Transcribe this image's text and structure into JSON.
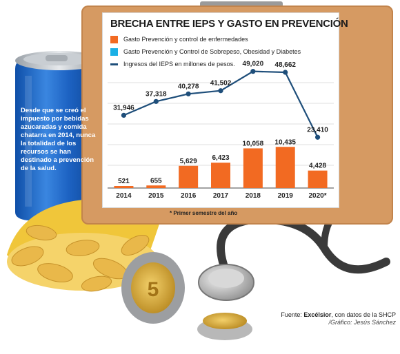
{
  "source": {
    "prefix": "Fuente: ",
    "outlet": "Excélsior",
    "suffix": ", con datos de la SHCP",
    "credit": "/Gráfico: Jesús Sánchez"
  },
  "side_text": "Desde que se creó el impuesto por bebidas azucaradas y comida chatarra en 2014, nunca la totalidad de los recursos se han destinado a prevención de la salud.",
  "colors": {
    "bars": "#f26a22",
    "secondary": "#1ab0e6",
    "line": "#1e4e7a"
  },
  "chart_data": {
    "type": "bar",
    "title": "BRECHA ENTRE IEPS Y GASTO EN PREVENCIÓN",
    "categories": [
      "2014",
      "2015",
      "2016",
      "2017",
      "2018",
      "2019",
      "2020*"
    ],
    "legend": [
      "Gasto Prevención y control de enfermedades",
      "Gasto Prevención y Control de Sobrepeso, Obesidad y Diabetes",
      "Ingresos del IEPS en millones de pesos."
    ],
    "series": [
      {
        "name": "Gasto Prevención y control de enfermedades",
        "type": "bar",
        "values": [
          521,
          655,
          5629,
          6423,
          10058,
          10435,
          4428
        ],
        "labels": [
          "521",
          "655",
          "5,629",
          "6,423",
          "10,058",
          "10,435",
          "4,428"
        ]
      },
      {
        "name": "Ingresos del IEPS en millones de pesos.",
        "type": "line",
        "values": [
          31946,
          37318,
          40278,
          41502,
          49020,
          48662,
          23410
        ],
        "labels": [
          "31,946",
          "37,318",
          "40,278",
          "41,502",
          "49,020",
          "48,662",
          "23,410"
        ]
      }
    ],
    "bar_ylim": [
      0,
      14500
    ],
    "line_ylim": [
      20000,
      50000
    ],
    "grid": true,
    "note": "* Primer semestre del año"
  }
}
